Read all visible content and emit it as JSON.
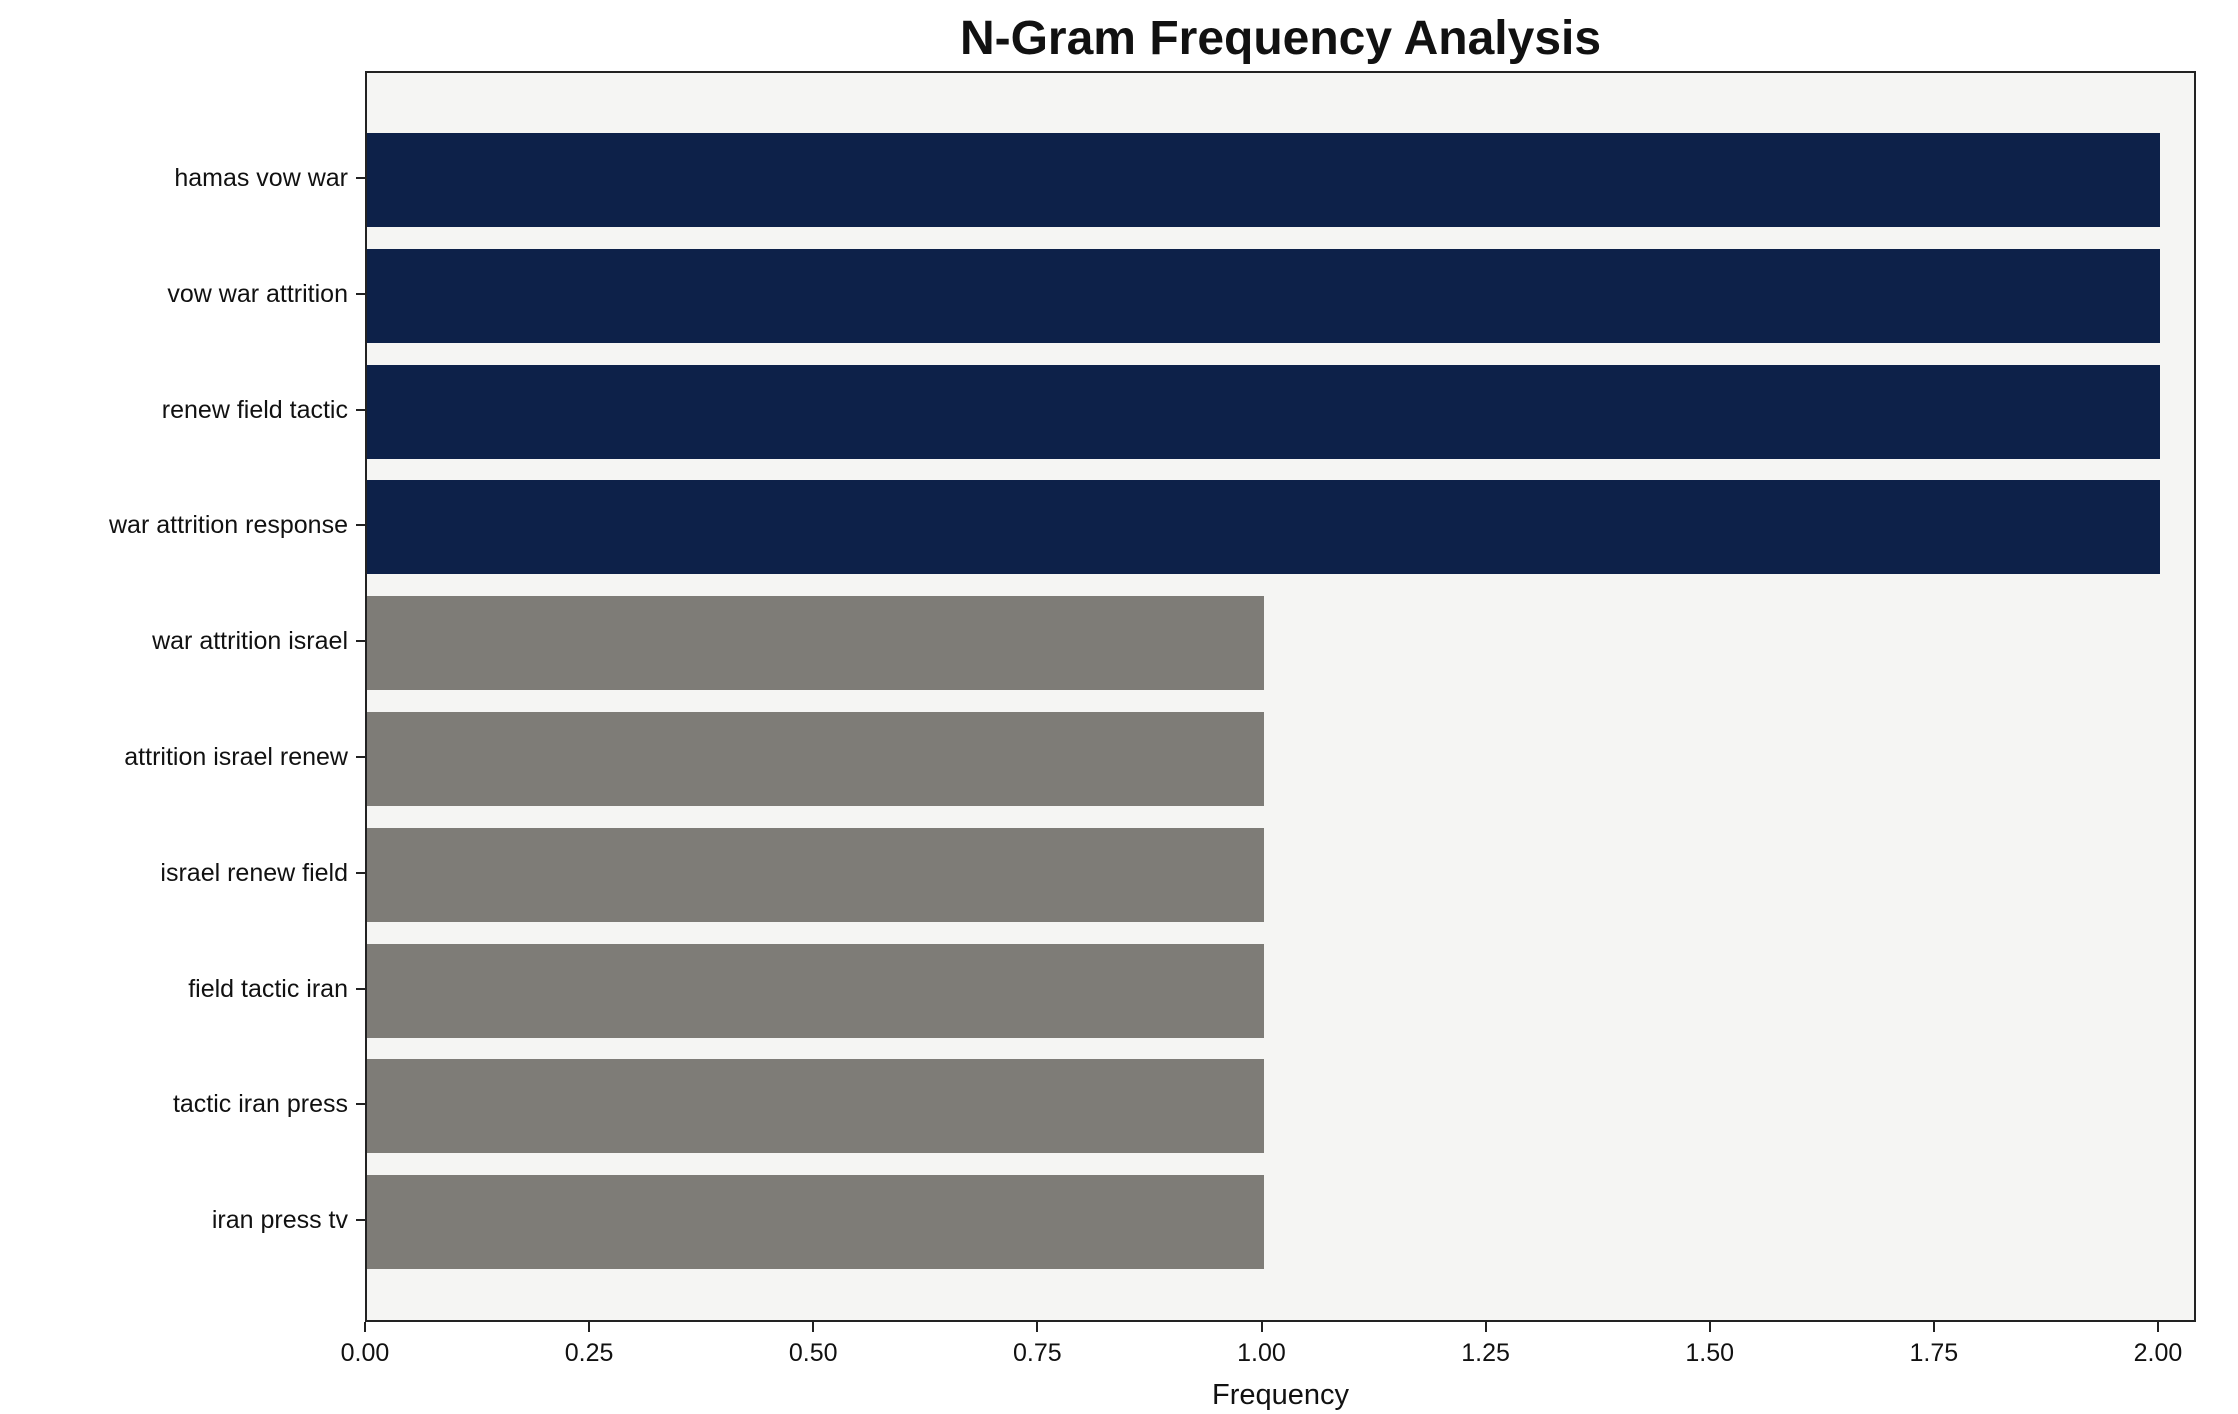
{
  "chart_data": {
    "type": "bar",
    "orientation": "horizontal",
    "title": "N-Gram Frequency Analysis",
    "xlabel": "Frequency",
    "ylabel": "",
    "categories": [
      "hamas vow war",
      "vow war attrition",
      "renew field tactic",
      "war attrition response",
      "war attrition israel",
      "attrition israel renew",
      "israel renew field",
      "field tactic iran",
      "tactic iran press",
      "iran press tv"
    ],
    "values": [
      2,
      2,
      2,
      2,
      1,
      1,
      1,
      1,
      1,
      1
    ],
    "bar_colors": [
      "#0d2149",
      "#0d2149",
      "#0d2149",
      "#0d2149",
      "#7e7c77",
      "#7e7c77",
      "#7e7c77",
      "#7e7c77",
      "#7e7c77",
      "#7e7c77"
    ],
    "xlim": [
      0,
      2.04
    ],
    "xticks": [
      "0.00",
      "0.25",
      "0.50",
      "0.75",
      "1.00",
      "1.25",
      "1.50",
      "1.75",
      "2.00"
    ],
    "xtick_values": [
      0,
      0.25,
      0.5,
      0.75,
      1.0,
      1.25,
      1.5,
      1.75,
      2.0
    ],
    "grid": false,
    "legend": "none",
    "colors": {
      "frequent_bar": "#0d2149",
      "infrequent_bar": "#7e7c77",
      "plot_background": "#f5f5f3",
      "figure_background": "#ffffff",
      "axis_line": "#222222",
      "text": "#111111"
    }
  }
}
